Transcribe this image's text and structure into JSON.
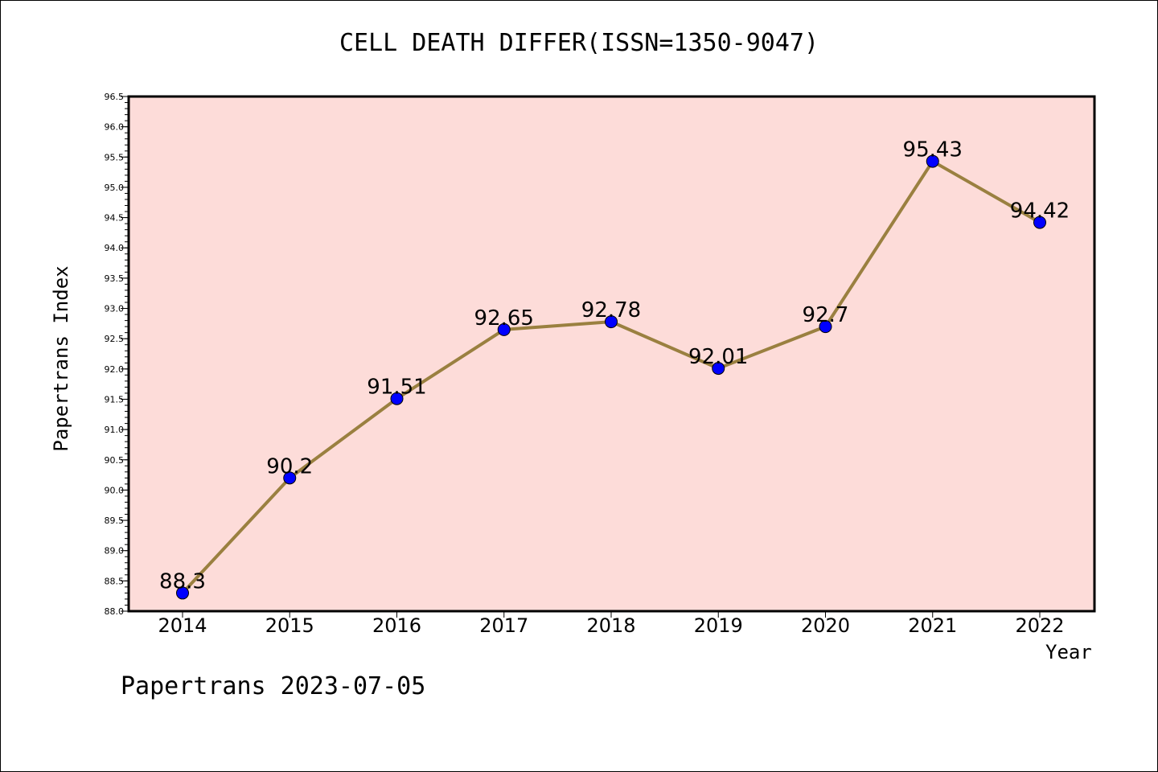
{
  "chart_data": {
    "type": "line",
    "title": "CELL DEATH DIFFER(ISSN=1350-9047)",
    "xlabel": "Year",
    "ylabel": "Papertrans Index",
    "categories": [
      "2014",
      "2015",
      "2016",
      "2017",
      "2018",
      "2019",
      "2020",
      "2021",
      "2022"
    ],
    "series": [
      {
        "values": [
          88.3,
          90.2,
          91.51,
          92.65,
          92.78,
          92.01,
          92.7,
          95.43,
          94.42
        ],
        "data_labels": [
          "88.3",
          "90.2",
          "91.51",
          "92.65",
          "92.78",
          "92.01",
          "92.7",
          "95.43",
          "94.42"
        ]
      }
    ],
    "ylim": [
      88.0,
      96.5
    ],
    "yticks": [
      "88.0",
      "88.5",
      "89.0",
      "89.5",
      "90.0",
      "90.5",
      "91.0",
      "91.5",
      "92.0",
      "92.5",
      "93.0",
      "93.5",
      "94.0",
      "94.5",
      "95.0",
      "95.5",
      "96.0",
      "96.5"
    ],
    "grid": false,
    "colors": {
      "plot_background": "#fddcd9",
      "line": "#9a8040",
      "marker": "#0000ff",
      "axis": "#000000"
    }
  },
  "footer": "Papertrans 2023-07-05"
}
